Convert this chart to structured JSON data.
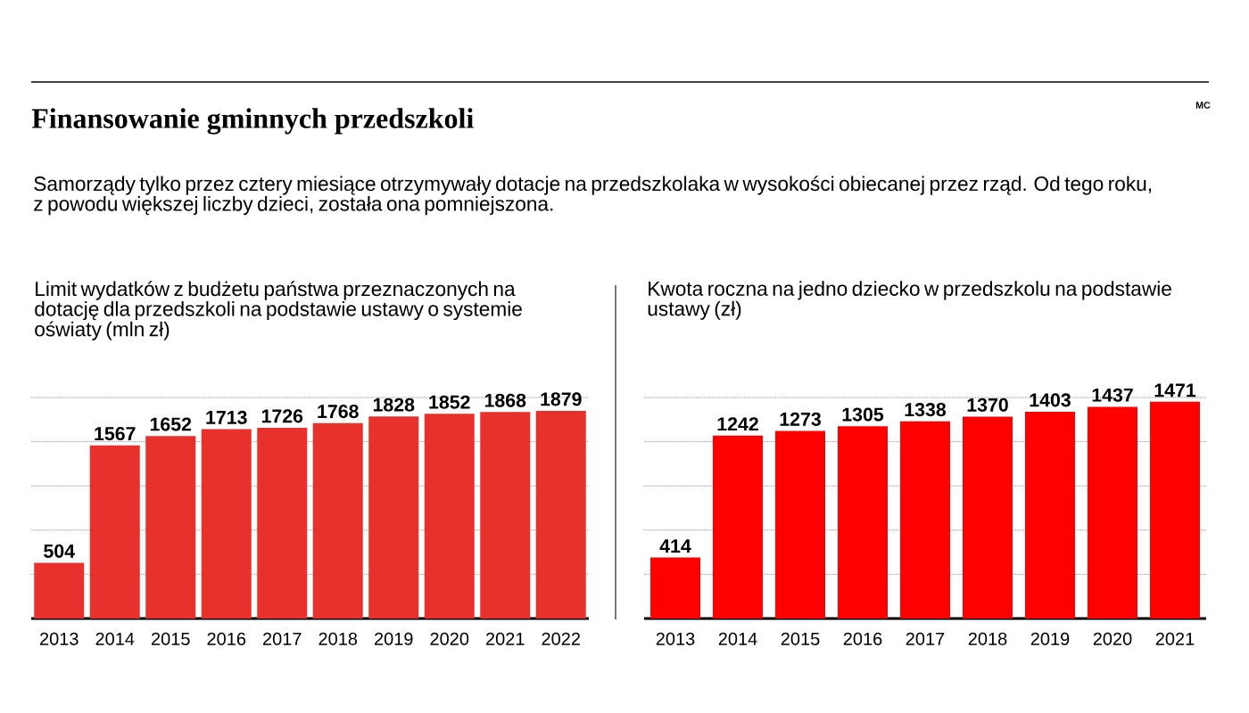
{
  "chart_data": [
    {
      "type": "bar",
      "title": "Finansowanie gminnych przedszkoli",
      "subtitle": "Samorządy tylko przez cztery miesiące otrzymywały dotacje na przedszkolaka w wysokości obiecanej przez rząd. Od tego roku, z powodu większej liczby dzieci, została ona pomniejszona.",
      "annotations": [
        "MC"
      ],
      "ylabel": "Limit wydatków z budżetu państwa przeznaczonych na dotację dla przedszkoli na podstawie ustawy o systemie oświaty (mln zł)",
      "categories": [
        "2013",
        "2014",
        "2015",
        "2016",
        "2017",
        "2018",
        "2019",
        "2020",
        "2021",
        "2022"
      ],
      "values": [
        504,
        1567,
        1652,
        1713,
        1726,
        1768,
        1828,
        1852,
        1868,
        1879
      ],
      "color": "#e8312c",
      "data_labels": true,
      "grid": "y",
      "tick_labels": "x",
      "ylim": [
        0,
        2000
      ],
      "yticks": [
        {
          "value": 400,
          "label": null
        },
        {
          "value": 800,
          "label": null
        },
        {
          "value": 1200,
          "label": null
        },
        {
          "value": 1600,
          "label": null
        },
        {
          "value": 2000,
          "label": null
        }
      ]
    },
    {
      "type": "bar",
      "ylabel": "Kwota roczna na jedno dziecko w przedszkolu na podstawie ustawy (zł)",
      "categories": [
        "2013",
        "2014",
        "2015",
        "2016",
        "2017",
        "2018",
        "2019",
        "2020",
        "2021"
      ],
      "values": [
        414,
        1242,
        1273,
        1305,
        1338,
        1370,
        1403,
        1437,
        1471
      ],
      "color": "#ff0000",
      "data_labels": true,
      "grid": "y",
      "tick_labels": "x",
      "ylim": [
        0,
        1500
      ],
      "yticks": [
        {
          "value": 300,
          "label": null
        },
        {
          "value": 600,
          "label": null
        },
        {
          "value": 900,
          "label": null
        },
        {
          "value": 1200,
          "label": null
        },
        {
          "value": 1500,
          "label": null
        }
      ]
    }
  ]
}
